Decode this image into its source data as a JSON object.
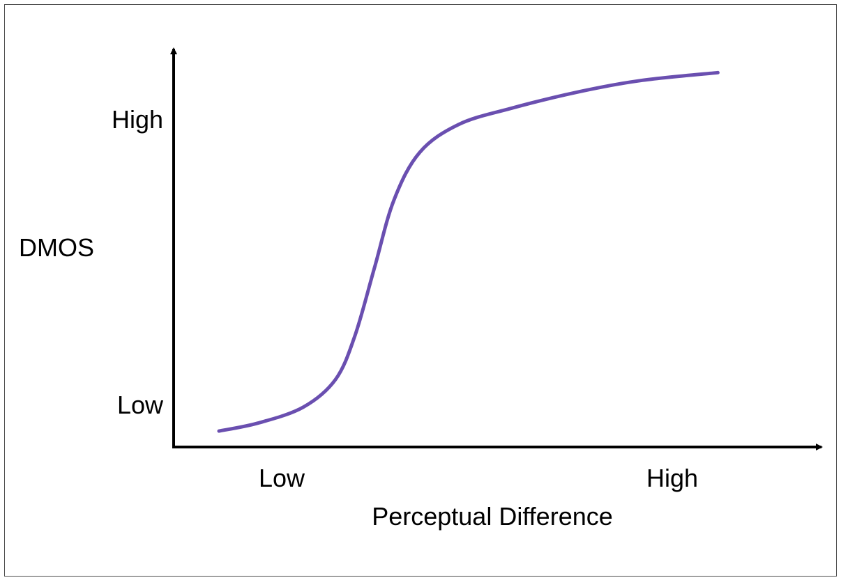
{
  "chart_data": {
    "type": "line",
    "xlabel": "Perceptual Difference",
    "ylabel": "DMOS",
    "x_ticks": [
      "Low",
      "High"
    ],
    "y_ticks": [
      "Low",
      "High"
    ],
    "xlim": [
      0,
      1
    ],
    "ylim": [
      0,
      1
    ],
    "grid": false,
    "line_color": "#6a4fb0",
    "series": [
      {
        "points": [
          [
            0.07,
            0.04
          ],
          [
            0.13,
            0.06
          ],
          [
            0.2,
            0.1
          ],
          [
            0.25,
            0.17
          ],
          [
            0.28,
            0.28
          ],
          [
            0.31,
            0.45
          ],
          [
            0.34,
            0.62
          ],
          [
            0.38,
            0.74
          ],
          [
            0.44,
            0.81
          ],
          [
            0.52,
            0.85
          ],
          [
            0.62,
            0.89
          ],
          [
            0.72,
            0.92
          ],
          [
            0.84,
            0.94
          ]
        ]
      }
    ]
  }
}
